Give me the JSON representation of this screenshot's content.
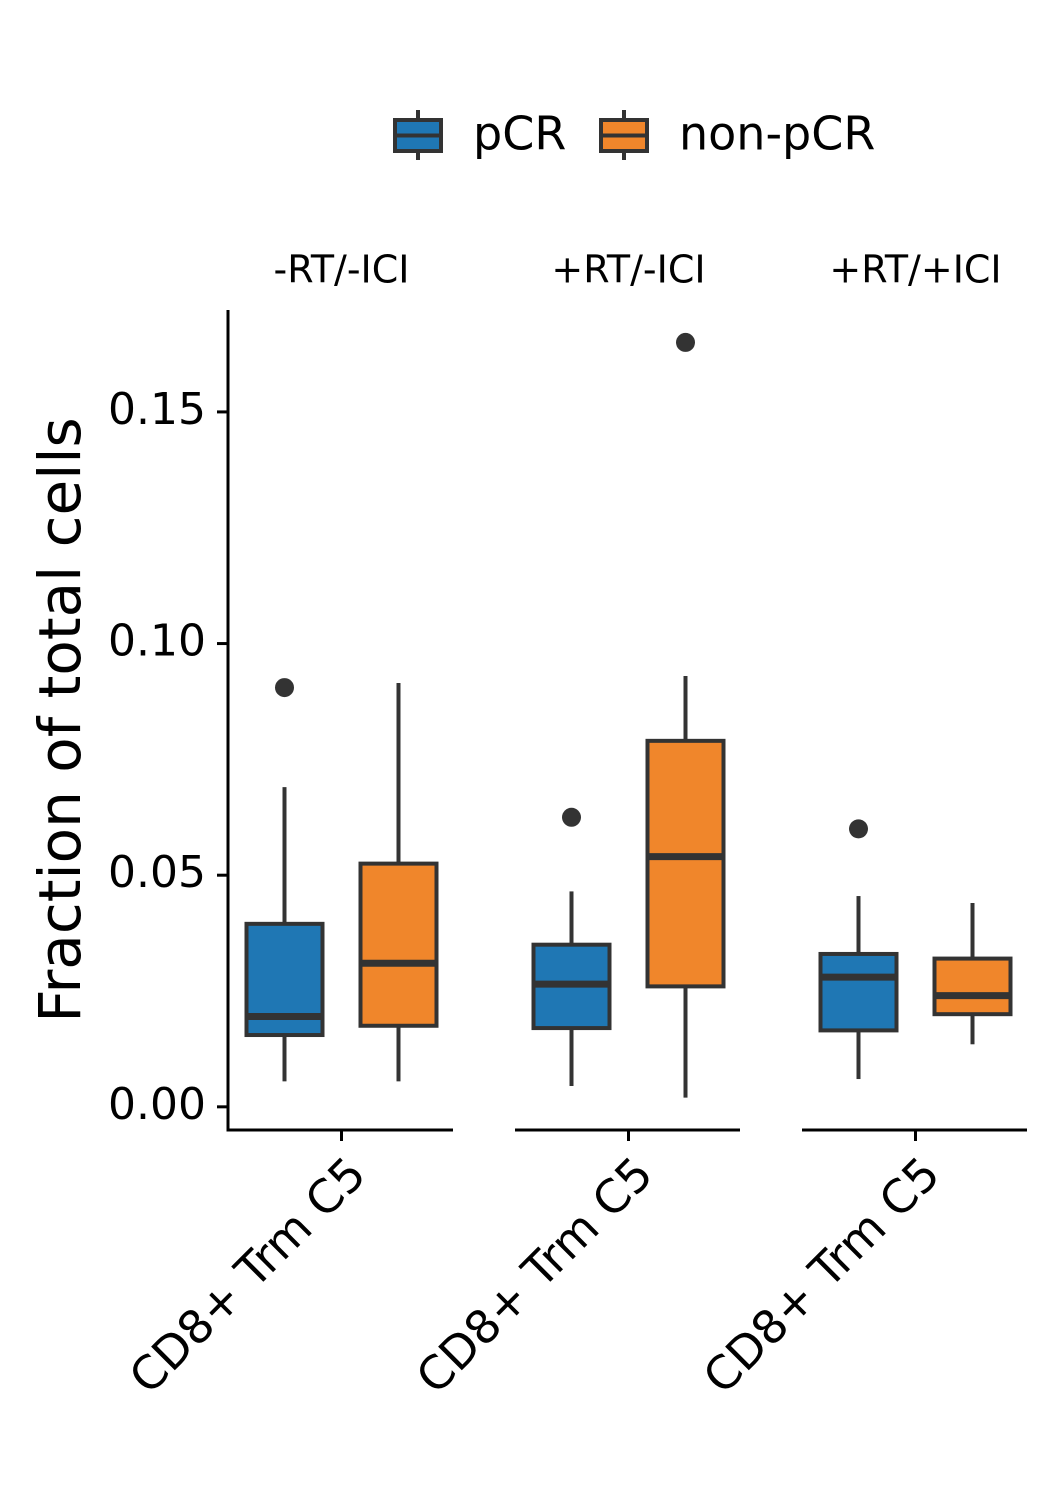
{
  "chart_data": {
    "type": "box",
    "ylabel": "Fraction of total cells",
    "ylim": [
      -0.005,
      0.172
    ],
    "yticks": [
      {
        "value": 0.0,
        "label": "0.00"
      },
      {
        "value": 0.05,
        "label": "0.05"
      },
      {
        "value": 0.1,
        "label": "0.10"
      },
      {
        "value": 0.15,
        "label": "0.15"
      }
    ],
    "legend": {
      "position": "top",
      "entries": [
        {
          "name": "pCR",
          "color": "#1f77b4"
        },
        {
          "name": "non-pCR",
          "color": "#f0862b"
        }
      ]
    },
    "panels": [
      {
        "title": "-RT/-ICI",
        "category": "CD8+ Trm C5",
        "boxes": [
          {
            "group": "pCR",
            "whisker_low": 0.0055,
            "q1": 0.0155,
            "median": 0.0195,
            "q3": 0.0395,
            "whisker_high": 0.069,
            "outliers": [
              0.0905
            ]
          },
          {
            "group": "non-pCR",
            "whisker_low": 0.0055,
            "q1": 0.0175,
            "median": 0.031,
            "q3": 0.0525,
            "whisker_high": 0.0915,
            "outliers": []
          }
        ]
      },
      {
        "title": "+RT/-ICI",
        "category": "CD8+ Trm C5",
        "boxes": [
          {
            "group": "pCR",
            "whisker_low": 0.0045,
            "q1": 0.017,
            "median": 0.0265,
            "q3": 0.035,
            "whisker_high": 0.0465,
            "outliers": [
              0.0625
            ]
          },
          {
            "group": "non-pCR",
            "whisker_low": 0.002,
            "q1": 0.026,
            "median": 0.054,
            "q3": 0.079,
            "whisker_high": 0.093,
            "outliers": [
              0.165
            ]
          }
        ]
      },
      {
        "title": "+RT/+ICI",
        "category": "CD8+ Trm C5",
        "boxes": [
          {
            "group": "pCR",
            "whisker_low": 0.006,
            "q1": 0.0165,
            "median": 0.028,
            "q3": 0.033,
            "whisker_high": 0.0455,
            "outliers": [
              0.06
            ]
          },
          {
            "group": "non-pCR",
            "whisker_low": 0.0135,
            "q1": 0.02,
            "median": 0.024,
            "q3": 0.032,
            "whisker_high": 0.044,
            "outliers": []
          }
        ]
      }
    ],
    "colors": {
      "outline": "#333333",
      "axis": "#000000"
    }
  }
}
